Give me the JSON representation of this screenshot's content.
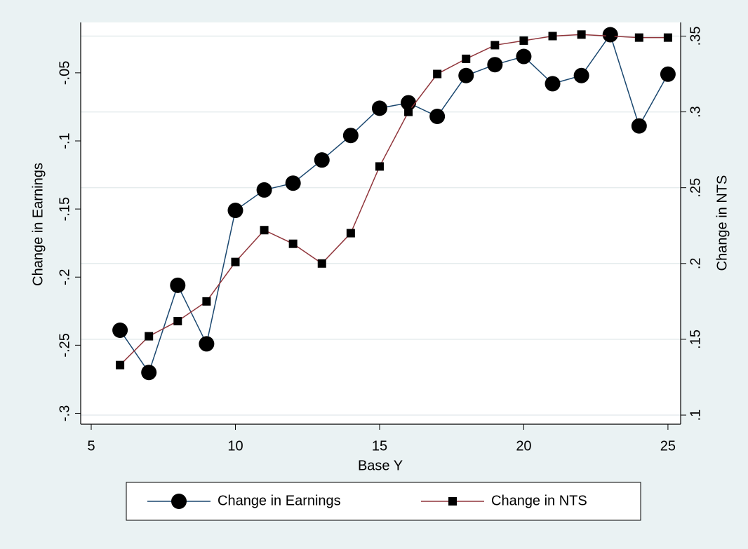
{
  "chart_data": {
    "type": "line",
    "y_label": "Change in Earnings",
    "y2_label": "Change in NTS",
    "x_label": "Base Y",
    "x": [
      6,
      7,
      8,
      9,
      10,
      11,
      12,
      13,
      14,
      15,
      16,
      17,
      18,
      19,
      20,
      21,
      22,
      23,
      24,
      25
    ],
    "series": [
      {
        "name": "Change in Earnings",
        "color": "#1a476f",
        "marker": "circle",
        "axis": "y",
        "values": [
          -0.239,
          -0.27,
          -0.206,
          -0.249,
          -0.151,
          -0.136,
          -0.131,
          -0.114,
          -0.096,
          -0.076,
          -0.072,
          -0.082,
          -0.052,
          -0.044,
          -0.038,
          -0.058,
          -0.052,
          -0.022,
          -0.089,
          -0.051
        ]
      },
      {
        "name": "Change in NTS",
        "color": "#90353b",
        "marker": "square",
        "axis": "y2",
        "values": [
          0.133,
          0.152,
          0.162,
          0.175,
          0.201,
          0.222,
          0.213,
          0.2,
          0.22,
          0.264,
          0.3,
          0.325,
          0.335,
          0.344,
          0.347,
          0.35,
          0.351,
          0.35,
          0.349,
          0.349
        ]
      }
    ],
    "xlim": [
      4.635,
      25.44
    ],
    "xticks": [
      5,
      10,
      15,
      20,
      25
    ],
    "ylim": [
      -0.308,
      -0.013
    ],
    "yticks": [
      {
        "value": -0.3,
        "label": "-.3"
      },
      {
        "value": -0.25,
        "label": "-.25"
      },
      {
        "value": -0.2,
        "label": "-.2"
      },
      {
        "value": -0.15,
        "label": "-.15"
      },
      {
        "value": -0.1,
        "label": "-.1"
      },
      {
        "value": -0.05,
        "label": "-.05"
      }
    ],
    "y2lim": [
      0.094,
      0.359
    ],
    "y2ticks": [
      {
        "value": 0.1,
        "label": ".1"
      },
      {
        "value": 0.15,
        "label": ".15"
      },
      {
        "value": 0.2,
        "label": ".2"
      },
      {
        "value": 0.25,
        "label": ".25"
      },
      {
        "value": 0.3,
        "label": ".3"
      },
      {
        "value": 0.35,
        "label": ".35"
      }
    ],
    "grid": true,
    "legend": "bottom"
  }
}
